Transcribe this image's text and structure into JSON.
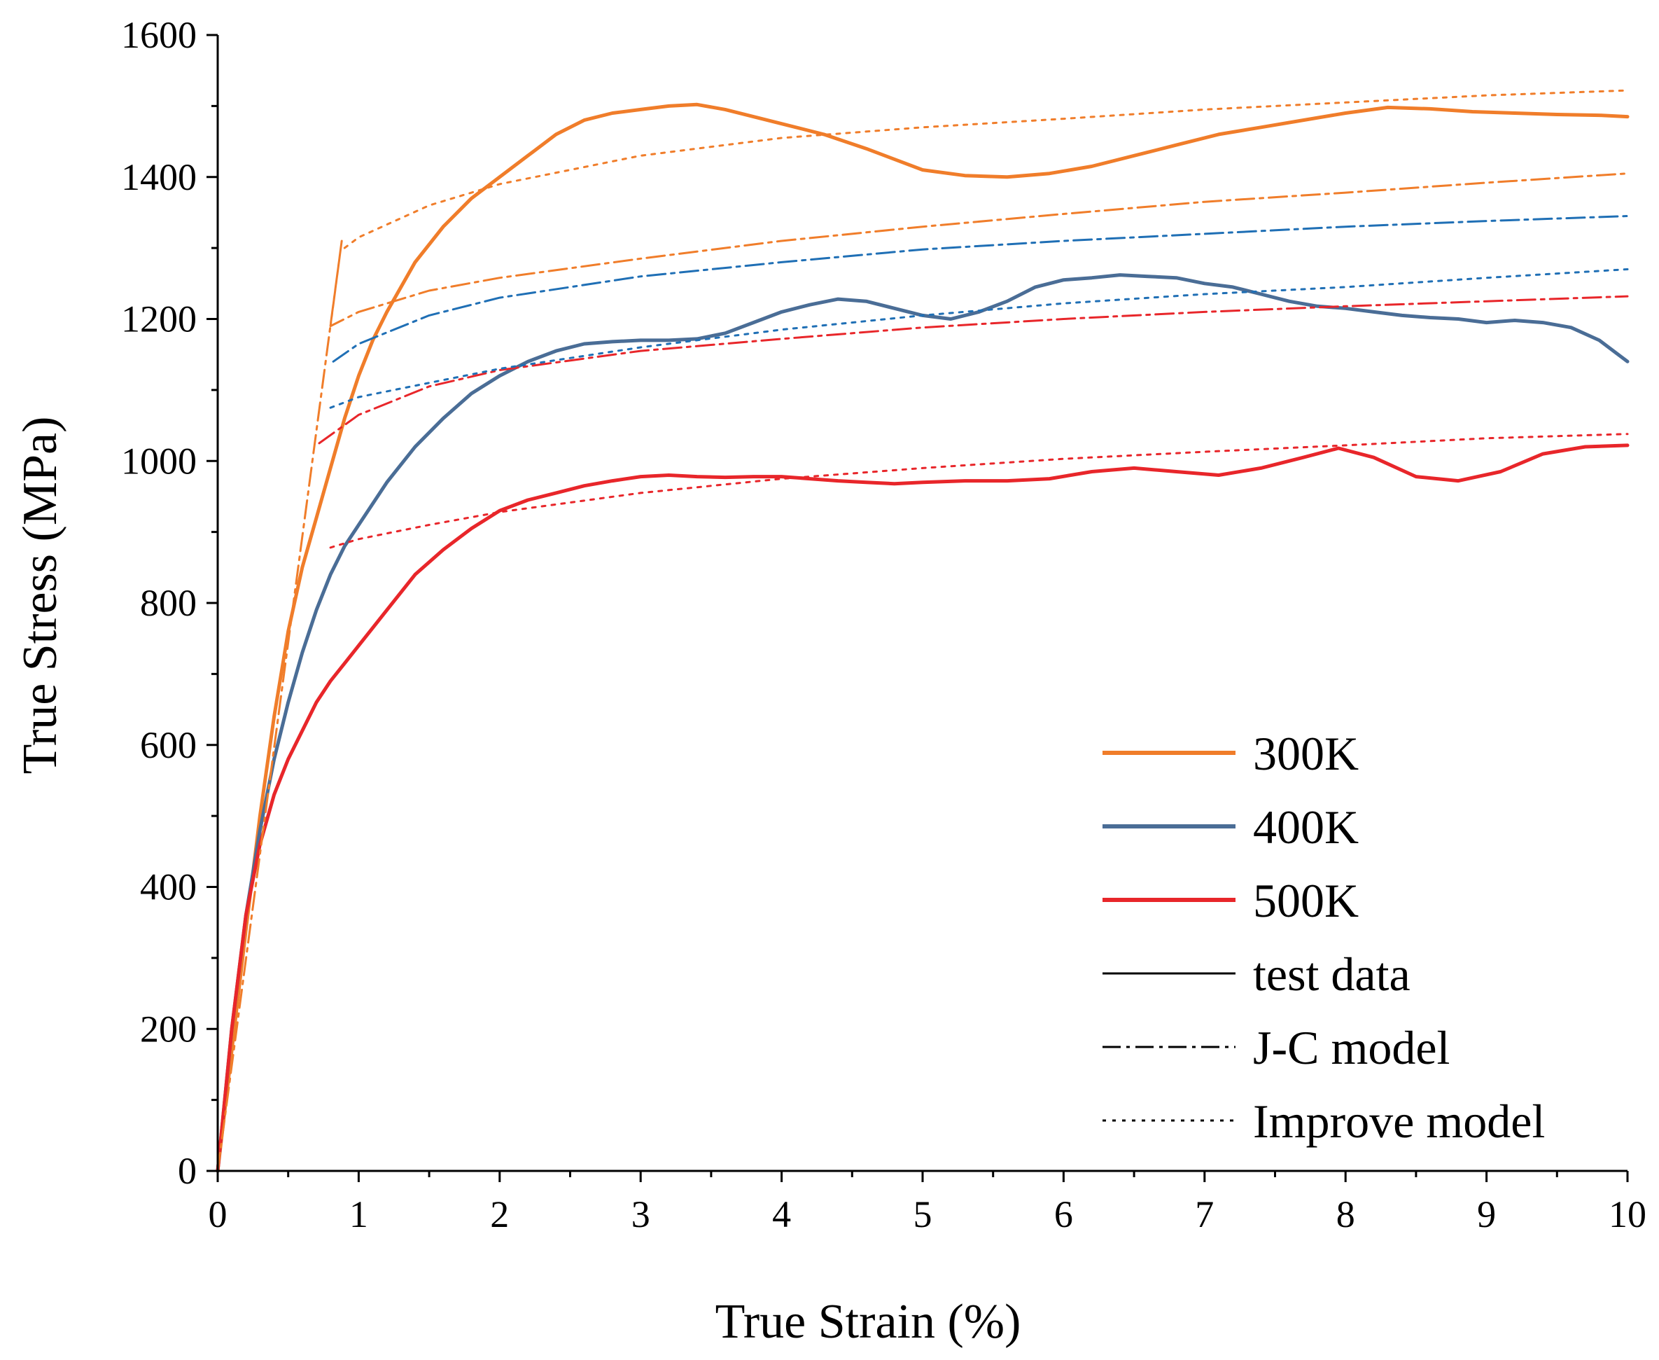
{
  "chart_data": {
    "type": "line",
    "title": "",
    "xlabel": "True Strain (%)",
    "ylabel": "True Stress (MPa)",
    "xlim": [
      0,
      10
    ],
    "ylim": [
      0,
      1600
    ],
    "xticks": [
      "0",
      "1",
      "2",
      "3",
      "4",
      "5",
      "6",
      "7",
      "8",
      "9",
      "10"
    ],
    "yticks": [
      "0",
      "200",
      "400",
      "600",
      "800",
      "1000",
      "1200",
      "1400",
      "1600"
    ],
    "grid": false,
    "legend_position": "bottom-right",
    "colors": {
      "300K": "#f07d2a",
      "400K": "#4a6d96",
      "500K": "#e8262a",
      "400K_model": "#1f6fb5",
      "legend_style": "#000000"
    },
    "legend": [
      {
        "label": "300K",
        "style": "solid",
        "color": "#f07d2a"
      },
      {
        "label": "400K",
        "style": "solid",
        "color": "#4a6d96"
      },
      {
        "label": "500K",
        "style": "solid",
        "color": "#e8262a"
      },
      {
        "label": "test data",
        "style": "solid",
        "color": "#000000"
      },
      {
        "label": "J-C model",
        "style": "dashdot",
        "color": "#000000"
      },
      {
        "label": "Improve model",
        "style": "dotted",
        "color": "#000000"
      }
    ],
    "series": [
      {
        "name": "300K test data",
        "style": "test",
        "color": "#f07d2a",
        "x": [
          0,
          0.1,
          0.2,
          0.3,
          0.4,
          0.5,
          0.6,
          0.7,
          0.8,
          0.9,
          1.0,
          1.1,
          1.2,
          1.4,
          1.6,
          1.8,
          2.0,
          2.2,
          2.4,
          2.6,
          2.8,
          3.0,
          3.2,
          3.4,
          3.6,
          3.8,
          4.0,
          4.3,
          4.6,
          5.0,
          5.3,
          5.6,
          5.9,
          6.2,
          6.5,
          6.8,
          7.1,
          7.4,
          7.7,
          8.0,
          8.3,
          8.6,
          8.9,
          9.2,
          9.5,
          9.8,
          10.0
        ],
        "y": [
          0,
          170,
          340,
          500,
          640,
          760,
          850,
          920,
          990,
          1060,
          1120,
          1170,
          1210,
          1280,
          1330,
          1370,
          1400,
          1430,
          1460,
          1480,
          1490,
          1495,
          1500,
          1502,
          1495,
          1485,
          1475,
          1460,
          1440,
          1410,
          1402,
          1400,
          1405,
          1415,
          1430,
          1445,
          1460,
          1470,
          1480,
          1490,
          1498,
          1496,
          1492,
          1490,
          1488,
          1487,
          1485
        ]
      },
      {
        "name": "400K test data",
        "style": "test",
        "color": "#4a6d96",
        "x": [
          0,
          0.1,
          0.2,
          0.3,
          0.4,
          0.5,
          0.6,
          0.7,
          0.8,
          0.9,
          1.0,
          1.2,
          1.4,
          1.6,
          1.8,
          2.0,
          2.2,
          2.4,
          2.6,
          2.8,
          3.0,
          3.2,
          3.4,
          3.6,
          3.8,
          4.0,
          4.2,
          4.4,
          4.6,
          4.8,
          5.0,
          5.2,
          5.4,
          5.6,
          5.8,
          6.0,
          6.2,
          6.4,
          6.6,
          6.8,
          7.0,
          7.2,
          7.4,
          7.6,
          7.8,
          8.0,
          8.2,
          8.4,
          8.6,
          8.8,
          9.0,
          9.2,
          9.4,
          9.6,
          9.8,
          10.0
        ],
        "y": [
          0,
          200,
          360,
          480,
          580,
          660,
          730,
          790,
          840,
          880,
          910,
          970,
          1020,
          1060,
          1095,
          1120,
          1140,
          1155,
          1165,
          1168,
          1170,
          1170,
          1172,
          1180,
          1195,
          1210,
          1220,
          1228,
          1225,
          1215,
          1205,
          1200,
          1210,
          1225,
          1245,
          1255,
          1258,
          1262,
          1260,
          1258,
          1250,
          1245,
          1235,
          1225,
          1218,
          1215,
          1210,
          1205,
          1202,
          1200,
          1195,
          1198,
          1195,
          1188,
          1170,
          1140
        ]
      },
      {
        "name": "500K test data",
        "style": "test",
        "color": "#e8262a",
        "x": [
          0,
          0.1,
          0.2,
          0.3,
          0.4,
          0.5,
          0.6,
          0.7,
          0.8,
          0.9,
          1.0,
          1.2,
          1.4,
          1.6,
          1.8,
          2.0,
          2.2,
          2.4,
          2.6,
          2.8,
          3.0,
          3.2,
          3.4,
          3.6,
          3.8,
          4.0,
          4.2,
          4.4,
          4.6,
          4.8,
          5.0,
          5.3,
          5.6,
          5.9,
          6.2,
          6.5,
          6.8,
          7.1,
          7.4,
          7.7,
          7.95,
          8.2,
          8.5,
          8.8,
          9.1,
          9.4,
          9.7,
          10.0
        ],
        "y": [
          0,
          200,
          360,
          460,
          530,
          580,
          620,
          660,
          690,
          715,
          740,
          790,
          840,
          875,
          905,
          930,
          945,
          955,
          965,
          972,
          978,
          980,
          978,
          977,
          978,
          978,
          975,
          972,
          970,
          968,
          970,
          972,
          972,
          975,
          985,
          990,
          985,
          980,
          990,
          1005,
          1018,
          1005,
          978,
          972,
          985,
          1010,
          1020,
          1022
        ]
      },
      {
        "name": "300K J-C model",
        "style": "jc",
        "color": "#f07d2a",
        "x": [
          0,
          0.88,
          0.8,
          1.0,
          1.5,
          2.0,
          3.0,
          4.0,
          5.0,
          6.0,
          7.0,
          8.0,
          9.0,
          10.0
        ],
        "y": [
          0,
          1310,
          1190,
          1210,
          1240,
          1258,
          1285,
          1310,
          1330,
          1348,
          1365,
          1378,
          1392,
          1405
        ]
      },
      {
        "name": "400K J-C model",
        "style": "jc",
        "color": "#1f6fb5",
        "x": [
          0.82,
          1.0,
          1.5,
          2.0,
          3.0,
          4.0,
          5.0,
          6.0,
          7.0,
          8.0,
          9.0,
          10.0
        ],
        "y": [
          1140,
          1165,
          1205,
          1230,
          1260,
          1280,
          1298,
          1310,
          1320,
          1330,
          1338,
          1345
        ]
      },
      {
        "name": "500K J-C model",
        "style": "jc",
        "color": "#e8262a",
        "x": [
          0.72,
          1.0,
          1.5,
          2.0,
          3.0,
          4.0,
          5.0,
          6.0,
          7.0,
          8.0,
          9.0,
          10.0
        ],
        "y": [
          1025,
          1065,
          1105,
          1128,
          1155,
          1172,
          1188,
          1200,
          1210,
          1218,
          1225,
          1232
        ]
      },
      {
        "name": "300K Improve model",
        "style": "improve",
        "color": "#f07d2a",
        "x": [
          0.9,
          1.0,
          1.5,
          2.0,
          3.0,
          4.0,
          5.0,
          6.0,
          7.0,
          8.0,
          9.0,
          10.0
        ],
        "y": [
          1300,
          1315,
          1360,
          1390,
          1430,
          1455,
          1470,
          1482,
          1495,
          1505,
          1515,
          1522
        ]
      },
      {
        "name": "400K Improve model",
        "style": "improve",
        "color": "#1f6fb5",
        "x": [
          0.8,
          1.0,
          1.5,
          2.0,
          3.0,
          4.0,
          5.0,
          6.0,
          7.0,
          8.0,
          9.0,
          10.0
        ],
        "y": [
          1075,
          1090,
          1110,
          1130,
          1160,
          1185,
          1205,
          1222,
          1235,
          1245,
          1258,
          1270
        ]
      },
      {
        "name": "500K Improve model",
        "style": "improve",
        "color": "#e8262a",
        "x": [
          0.8,
          1.0,
          1.5,
          2.0,
          3.0,
          4.0,
          5.0,
          6.0,
          7.0,
          8.0,
          9.0,
          10.0
        ],
        "y": [
          878,
          890,
          910,
          928,
          955,
          975,
          990,
          1003,
          1013,
          1022,
          1032,
          1038
        ]
      }
    ]
  }
}
